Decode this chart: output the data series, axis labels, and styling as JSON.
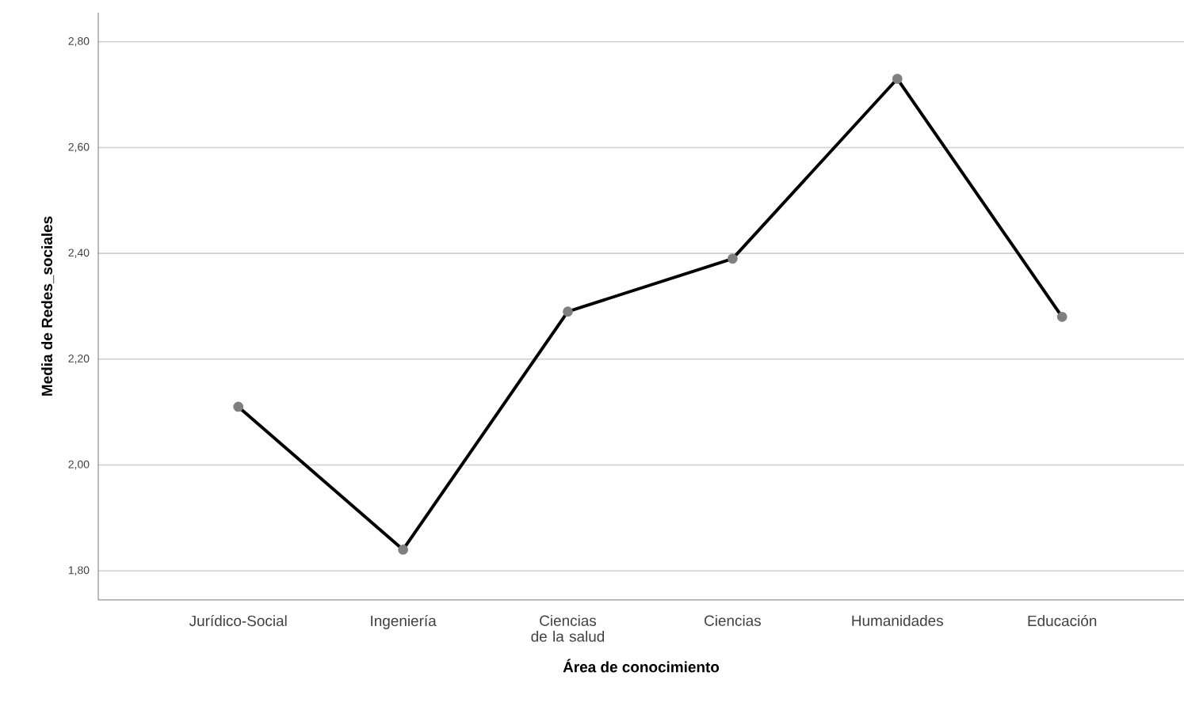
{
  "chart_data": {
    "type": "line",
    "xlabel": "Área de conocimiento",
    "ylabel": "Media de Redes_sociales",
    "categories": [
      "Jurídico-Social",
      "Ingeniería",
      "Ciencias de la salud",
      "Ciencias",
      "Humanidades",
      "Educación"
    ],
    "series": [
      {
        "color": "#000000",
        "values": [
          2.11,
          1.84,
          2.29,
          2.39,
          2.73,
          2.28
        ]
      }
    ],
    "ylim": [
      1.745,
      2.855
    ],
    "yticks": [
      {
        "value": 1.8,
        "label": "1,80"
      },
      {
        "value": 2.0,
        "label": "2,00"
      },
      {
        "value": 2.2,
        "label": "2,20"
      },
      {
        "value": 2.4,
        "label": "2,40"
      },
      {
        "value": 2.6,
        "label": "2,60"
      },
      {
        "value": 2.8,
        "label": "2,80"
      }
    ],
    "grid": "y",
    "marker": "circle",
    "line_style": "solid"
  }
}
